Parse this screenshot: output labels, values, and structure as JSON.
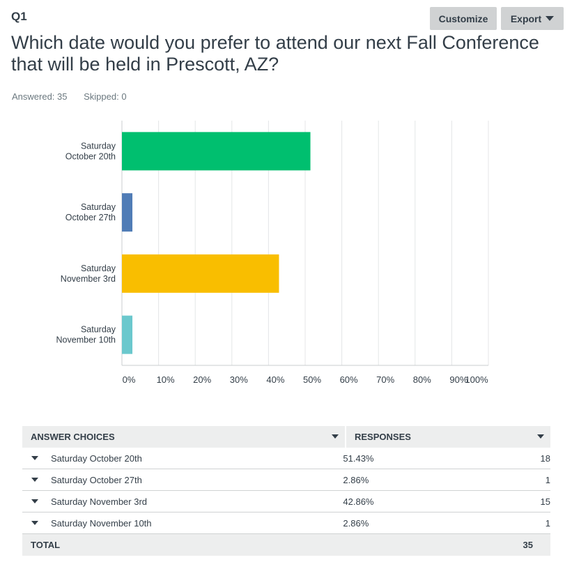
{
  "question": {
    "number": "Q1",
    "title": "Which date would you prefer to attend our next Fall Conference that will be held in Prescott, AZ?",
    "answered": "Answered: 35",
    "skipped": "Skipped: 0"
  },
  "toolbar": {
    "customize_label": "Customize",
    "export_label": "Export"
  },
  "chart_data": {
    "type": "bar",
    "orientation": "horizontal",
    "categories": [
      [
        "Saturday",
        "October 20th"
      ],
      [
        "Saturday",
        "October 27th"
      ],
      [
        "Saturday",
        "November 3rd"
      ],
      [
        "Saturday",
        "November 10th"
      ]
    ],
    "values": [
      51.43,
      2.86,
      42.86,
      2.86
    ],
    "colors": [
      "#00bf6f",
      "#507cb6",
      "#f9be00",
      "#6bc8cd"
    ],
    "xlim": [
      0,
      100
    ],
    "xticks": [
      "0%",
      "10%",
      "20%",
      "30%",
      "40%",
      "50%",
      "60%",
      "70%",
      "80%",
      "90%",
      "100%"
    ],
    "grid": true
  },
  "table": {
    "headers": {
      "choices": "ANSWER CHOICES",
      "responses": "RESPONSES"
    },
    "rows": [
      {
        "choice": "Saturday October 20th",
        "percent": "51.43%",
        "count": "18"
      },
      {
        "choice": "Saturday October 27th",
        "percent": "2.86%",
        "count": "1"
      },
      {
        "choice": "Saturday November 3rd",
        "percent": "42.86%",
        "count": "15"
      },
      {
        "choice": "Saturday November 10th",
        "percent": "2.86%",
        "count": "1"
      }
    ],
    "total_label": "TOTAL",
    "total_count": "35"
  }
}
